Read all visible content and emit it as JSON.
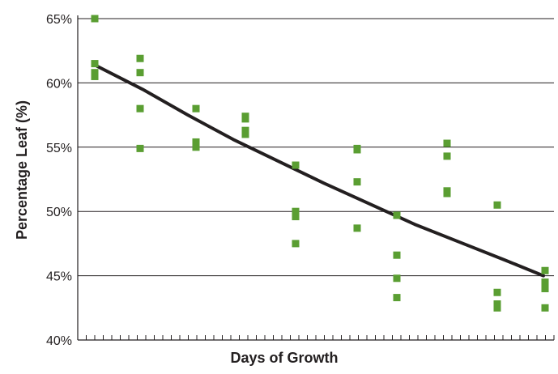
{
  "chart_data": {
    "type": "scatter",
    "title": "",
    "xlabel": "Days of Growth",
    "ylabel": "Percentage Leaf (%)",
    "ylim": [
      40,
      65
    ],
    "yticks": [
      {
        "value": 40,
        "label": "40%"
      },
      {
        "value": 45,
        "label": "45%"
      },
      {
        "value": 50,
        "label": "50%"
      },
      {
        "value": 55,
        "label": "55%"
      },
      {
        "value": 60,
        "label": "60%"
      },
      {
        "value": 65,
        "label": "65%"
      }
    ],
    "xlim": [
      0,
      56
    ],
    "x_minor_ticks": 56,
    "grid": {
      "horizontal": true,
      "vertical": false
    },
    "legend": "none",
    "colors": {
      "points": "#5a9e32",
      "trendline": "#231f20",
      "grid": "#231f20"
    },
    "series": [
      {
        "kind": "points",
        "points": [
          {
            "x": 2.5,
            "y": 65.0
          },
          {
            "x": 2.5,
            "y": 61.5
          },
          {
            "x": 2.5,
            "y": 60.8
          },
          {
            "x": 2.5,
            "y": 60.5
          },
          {
            "x": 8.1,
            "y": 61.9
          },
          {
            "x": 8.1,
            "y": 60.8
          },
          {
            "x": 8.1,
            "y": 58.0
          },
          {
            "x": 8.1,
            "y": 54.9
          },
          {
            "x": 15.0,
            "y": 58.0
          },
          {
            "x": 15.0,
            "y": 55.4
          },
          {
            "x": 15.0,
            "y": 55.0
          },
          {
            "x": 21.1,
            "y": 57.4
          },
          {
            "x": 21.1,
            "y": 57.2
          },
          {
            "x": 21.1,
            "y": 56.3
          },
          {
            "x": 21.1,
            "y": 56.0
          },
          {
            "x": 27.3,
            "y": 53.6
          },
          {
            "x": 27.3,
            "y": 50.0
          },
          {
            "x": 27.3,
            "y": 49.6
          },
          {
            "x": 27.3,
            "y": 47.5
          },
          {
            "x": 34.9,
            "y": 54.9
          },
          {
            "x": 34.9,
            "y": 54.8
          },
          {
            "x": 34.9,
            "y": 52.3
          },
          {
            "x": 34.9,
            "y": 48.7
          },
          {
            "x": 39.8,
            "y": 49.7
          },
          {
            "x": 39.8,
            "y": 46.6
          },
          {
            "x": 39.8,
            "y": 44.8
          },
          {
            "x": 39.8,
            "y": 43.3
          },
          {
            "x": 46.0,
            "y": 55.3
          },
          {
            "x": 46.0,
            "y": 54.3
          },
          {
            "x": 46.0,
            "y": 51.6
          },
          {
            "x": 46.0,
            "y": 51.4
          },
          {
            "x": 52.2,
            "y": 50.5
          },
          {
            "x": 52.2,
            "y": 43.7
          },
          {
            "x": 52.2,
            "y": 42.8
          },
          {
            "x": 52.2,
            "y": 42.5
          },
          {
            "x": 58.1,
            "y": 45.4
          },
          {
            "x": 58.1,
            "y": 44.5
          },
          {
            "x": 58.1,
            "y": 44.0
          },
          {
            "x": 58.1,
            "y": 42.5
          }
        ]
      },
      {
        "kind": "trendline",
        "points": [
          {
            "x": 2.8,
            "y": 61.3
          },
          {
            "x": 8.4,
            "y": 59.5
          },
          {
            "x": 14.0,
            "y": 57.5
          },
          {
            "x": 19.6,
            "y": 55.6
          },
          {
            "x": 25.2,
            "y": 53.9
          },
          {
            "x": 30.8,
            "y": 52.2
          },
          {
            "x": 36.4,
            "y": 50.6
          },
          {
            "x": 42.0,
            "y": 49.0
          },
          {
            "x": 47.6,
            "y": 47.6
          },
          {
            "x": 53.2,
            "y": 46.2
          },
          {
            "x": 57.9,
            "y": 45.0
          }
        ]
      }
    ]
  }
}
